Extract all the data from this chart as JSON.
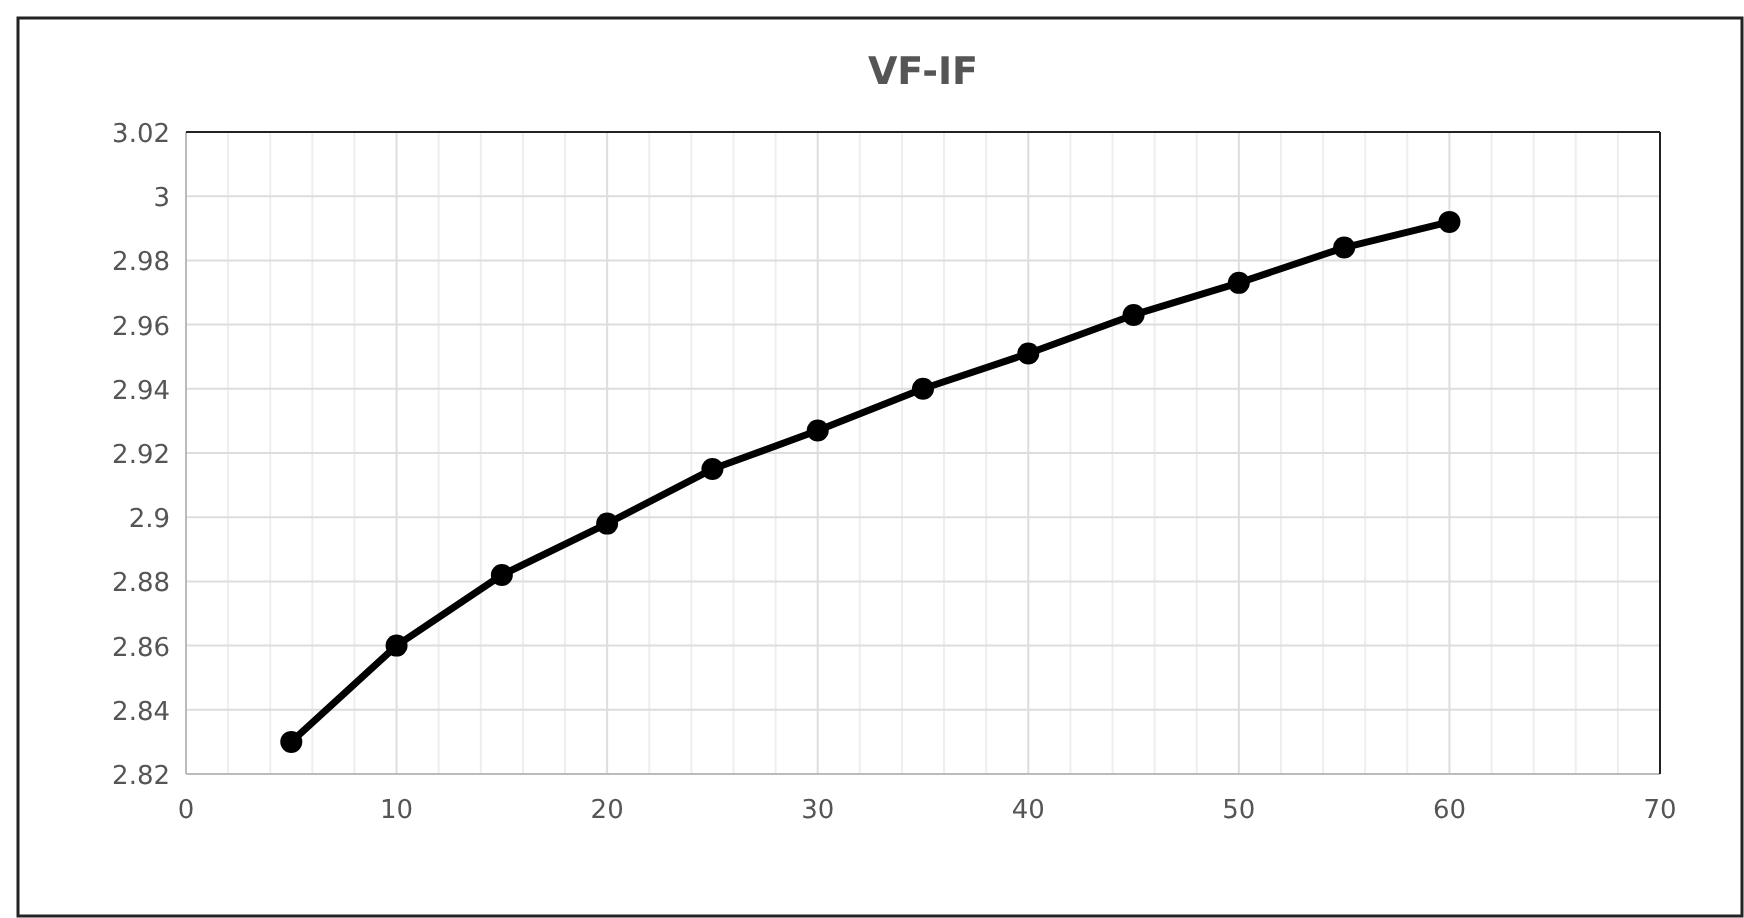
{
  "chart_data": {
    "type": "line",
    "title": "VF-IF",
    "x": [
      5,
      10,
      15,
      20,
      25,
      30,
      35,
      40,
      45,
      50,
      55,
      60
    ],
    "series": [
      {
        "color": "#000000",
        "values": [
          2.83,
          2.86,
          2.882,
          2.898,
          2.915,
          2.927,
          2.94,
          2.951,
          2.963,
          2.973,
          2.984,
          2.992
        ]
      }
    ],
    "xlim": [
      0,
      70
    ],
    "xticks": [
      0,
      {
        "value": 2,
        "label": null
      },
      {
        "value": 4,
        "label": null
      },
      {
        "value": 6,
        "label": null
      },
      {
        "value": 8,
        "label": null
      },
      10,
      {
        "value": 12,
        "label": null
      },
      {
        "value": 14,
        "label": null
      },
      {
        "value": 16,
        "label": null
      },
      {
        "value": 18,
        "label": null
      },
      20,
      {
        "value": 22,
        "label": null
      },
      {
        "value": 24,
        "label": null
      },
      {
        "value": 26,
        "label": null
      },
      {
        "value": 28,
        "label": null
      },
      30,
      {
        "value": 32,
        "label": null
      },
      {
        "value": 34,
        "label": null
      },
      {
        "value": 36,
        "label": null
      },
      {
        "value": 38,
        "label": null
      },
      40,
      {
        "value": 42,
        "label": null
      },
      {
        "value": 44,
        "label": null
      },
      {
        "value": 46,
        "label": null
      },
      {
        "value": 48,
        "label": null
      },
      50,
      {
        "value": 52,
        "label": null
      },
      {
        "value": 54,
        "label": null
      },
      {
        "value": 56,
        "label": null
      },
      {
        "value": 58,
        "label": null
      },
      60,
      {
        "value": 62,
        "label": null
      },
      {
        "value": 64,
        "label": null
      },
      {
        "value": 66,
        "label": null
      },
      {
        "value": 68,
        "label": null
      },
      70
    ],
    "ylim": [
      2.82,
      3.02
    ],
    "yticks": [
      2.82,
      2.84,
      2.86,
      2.88,
      2.9,
      2.92,
      2.94,
      2.96,
      2.98,
      3,
      3.02
    ],
    "grid": true,
    "marker": "circle",
    "line_style": "solid"
  }
}
